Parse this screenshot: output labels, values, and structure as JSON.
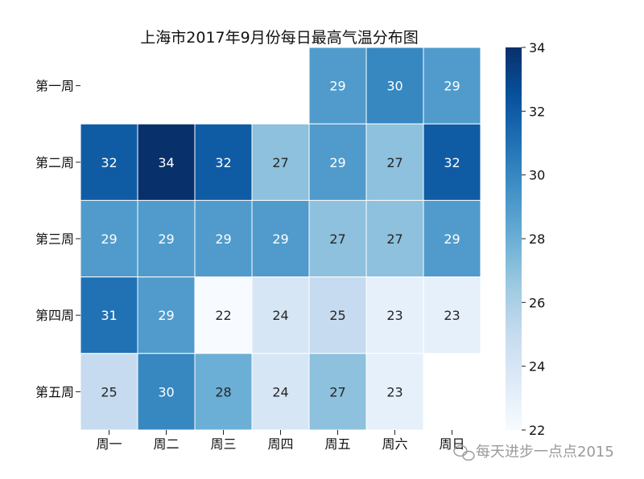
{
  "chart_data": {
    "type": "heatmap",
    "title": "上海市2017年9月份每日最高气温分布图",
    "x_categories": [
      "周一",
      "周二",
      "周三",
      "周四",
      "周五",
      "周六",
      "周日"
    ],
    "y_categories": [
      "第一周",
      "第二周",
      "第三周",
      "第四周",
      "第五周"
    ],
    "values": [
      [
        null,
        null,
        null,
        null,
        29,
        30,
        29
      ],
      [
        32,
        34,
        32,
        27,
        29,
        27,
        32
      ],
      [
        29,
        29,
        29,
        29,
        27,
        27,
        29
      ],
      [
        31,
        29,
        22,
        24,
        25,
        23,
        23
      ],
      [
        25,
        30,
        28,
        24,
        27,
        23,
        null
      ]
    ],
    "colorscale": "Blues",
    "vmin": 22,
    "vmax": 34,
    "colorbar_ticks": [
      22,
      24,
      26,
      28,
      30,
      32,
      34
    ],
    "annotated": true
  },
  "watermark": {
    "text": "每天进步一点点2015",
    "icon": "wechat-icon"
  }
}
